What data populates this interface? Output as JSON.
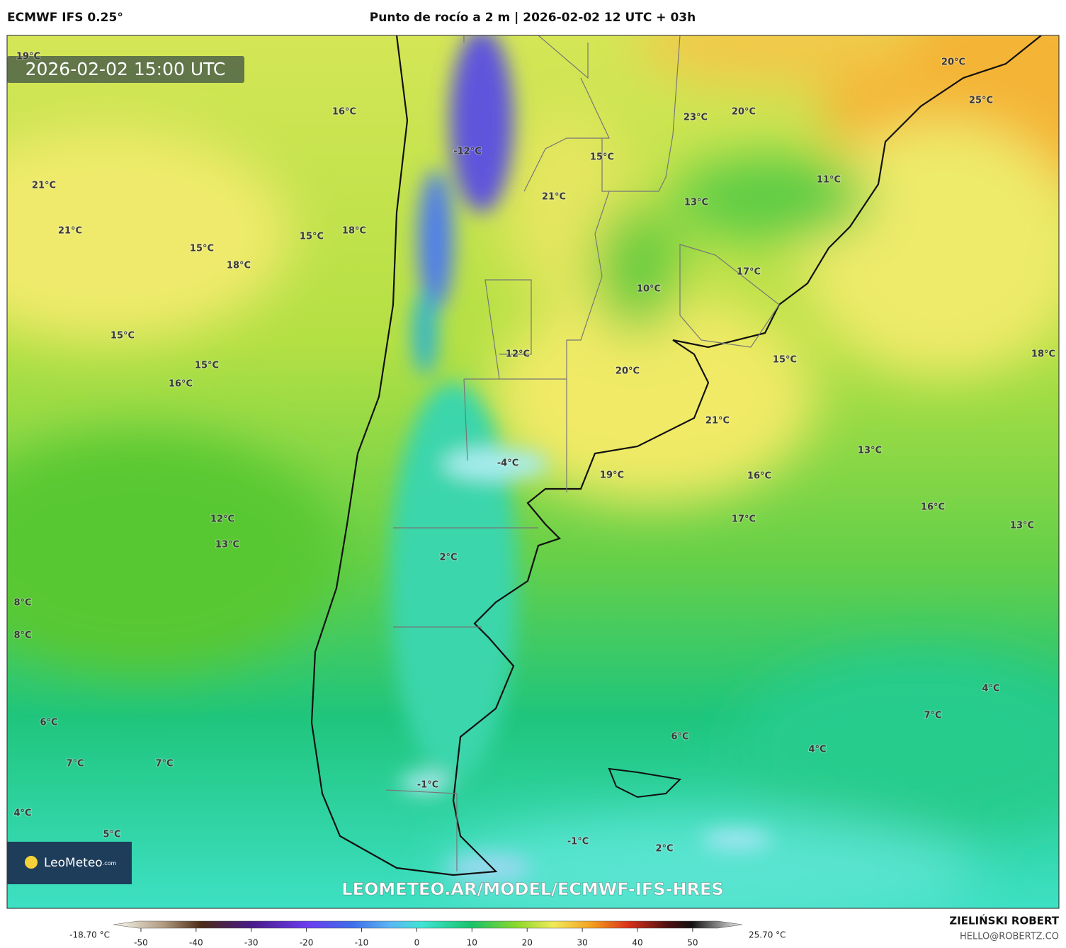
{
  "header": {
    "model": "ECMWF IFS 0.25°",
    "title": "Punto de rocío a 2 m | 2026-02-02 12 UTC + 03h"
  },
  "timestamp": "2026-02-02 15:00 UTC",
  "labels": [
    "19°C",
    "16°C",
    "-12°C",
    "21°C",
    "21°C",
    "15°C",
    "18°C",
    "15°C",
    "18°C",
    "15°C",
    "21°C",
    "23°C",
    "20°C",
    "20°C",
    "25°C",
    "11°C",
    "13°C",
    "17°C",
    "10°C",
    "15°C",
    "15°C",
    "16°C",
    "12°C",
    "20°C",
    "15°C",
    "18°C",
    "21°C",
    "13°C",
    "-4°C",
    "19°C",
    "16°C",
    "16°C",
    "12°C",
    "13°C",
    "17°C",
    "13°C",
    "2°C",
    "8°C",
    "8°C",
    "4°C",
    "7°C",
    "6°C",
    "6°C",
    "4°C",
    "7°C",
    "7°C",
    "-1°C",
    "4°C",
    "5°C",
    "-1°C",
    "2°C"
  ],
  "watermark": "LEOMETEO.AR/MODEL/ECMWF-IFS-HRES",
  "logo": {
    "name": "LeoMeteo",
    "suffix": ".com"
  },
  "colorbar": {
    "min_label": "-18.70 °C",
    "max_label": "25.70 °C",
    "lim": [
      -55,
      59
    ],
    "ticks": [
      -50,
      -40,
      -30,
      -20,
      -10,
      0,
      10,
      20,
      30,
      40,
      50
    ]
  },
  "credit": {
    "author": "ZIELIŃSKI ROBERT",
    "contact": "HELLO@ROBERTZ.CO"
  }
}
